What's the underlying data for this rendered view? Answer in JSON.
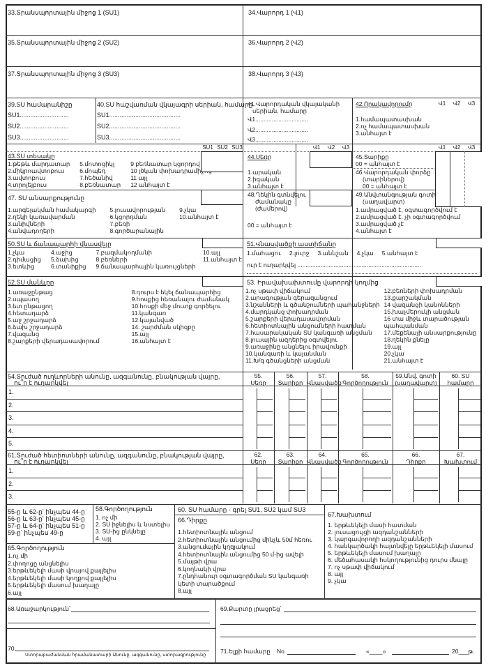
{
  "s33": "33.Տրանսպորտային միջոց 1 (SU1)",
  "s34": "34.Վարորդ 1 (Վ1)",
  "s35": "35.Տրանսպորտային միջոց 2 (SU2)",
  "s36": "36.Վարորդ 2 (Վ2)",
  "s37": "37.Տրանսպորտային միջոց 3 (SU3)",
  "s38": "38.Վարորդ 3 (Վ3)",
  "s39": {
    "title": "39.SU համարանիշը",
    "lines": [
      "SU1............................",
      "SU2............................",
      "SU3............................"
    ]
  },
  "s40": {
    "title": "40.SU հաշվառման վկայագրի սերիան, համարը",
    "lines": [
      "SU1.........................................",
      "SU2.........................................",
      "SU3........................................."
    ]
  },
  "s41": {
    "title": "41.Վարորդական վկայականի",
    "title2": "սերիան, համարը",
    "lines": [
      "Վ1................................",
      "Վ2................................",
      "Վ3................................"
    ]
  },
  "s42": {
    "title": "42.Որակավորումը",
    "items": [
      "1.համապատասխան",
      "2.ոչ համապատասխան",
      "3.անհայտ է"
    ]
  },
  "su_cols": [
    "SU1",
    "SU2",
    "SU3"
  ],
  "v_cols": [
    "Վ1",
    "Վ2",
    "Վ3"
  ],
  "s43": {
    "title": "43.SU տեսակը",
    "items": [
      "1.թեթև մարդատար",
      "2.միկրոավտոբուս",
      "3.ավտոբուս",
      "4.տրոլեյբուս",
      "5.մոտոցիկլ",
      "6.մոպեդ",
      "7.հեծանիվ",
      "8.բեռնատար",
      "9 բեռնատար կցորդով",
      "10 լծկան փոխադրամիջոց",
      "11 այլ",
      "12 անհայտ է"
    ]
  },
  "s44": {
    "title": "44.Սեռը",
    "items": [
      "1.արական",
      "2.իգական",
      "3.անհայտ է"
    ]
  },
  "s45": {
    "title": "45.Տարիքը",
    "note": "00 = անհայտ է"
  },
  "s46": {
    "title": "46.Վարորդական փորձը",
    "title2": "(տարիներով)",
    "note": "00 = անհայտ է"
  },
  "s47": {
    "title": "47. SU անսարքությունը",
    "items": [
      "1.արգելակման համակարգի",
      "2.ղեկի կառավարման",
      "3.անիվների",
      "4.անվադողերի",
      "5.լուսավորության",
      "6.կցորդման",
      "7.բեռի",
      "8.գործարանային",
      "9.չկա",
      "10.անհայտ է"
    ]
  },
  "s48": {
    "title": "48.Ղեկին գտնվելու",
    "title2": "ժամանակը",
    "title3": "(ժամերով)",
    "note": "00 = անհայտ է"
  },
  "s49": {
    "title": "49.Անվտանգության գոտի",
    "title2": "(սաղավարտ)",
    "items": [
      "1.ամրացված է, օգտագործվում է",
      "2.ամրացված է, չի օգտագործվում",
      "3.ամրացված չէ",
      "4.անհայտ է"
    ]
  },
  "s50": {
    "title": "50.SU և ճանապարհի վնասվելը",
    "items": [
      "1.չկա",
      "2.դիմացից",
      "3.ետևից",
      "4.աջից",
      "5.ձախից",
      "6.տանիքից",
      "7.բազմակողմանի",
      "8.բեռների",
      "9.ճանապարհային կառույցների"
    ],
    "items_right": [
      "10.այլ",
      "11.անհայտ է"
    ]
  },
  "s51": {
    "title": "51.Վնասվածքի աստիճանը",
    "items": [
      "1.մահացու",
      "2.լուրջ",
      "3.աննշան",
      "4.չկա",
      "5.անհայտ է"
    ],
    "sent": "ուր է ուղարկվել ..........................................................................."
  },
  "s52": {
    "title": "52.SU մանևրը",
    "items": [
      "1.առաջընթաց",
      "2.սպասող",
      "3.ետ ընթացող",
      "4.հետադարձ",
      "5.աջ շրջադարձ",
      "6.ձախ շրջադարձ",
      "7.վազանց",
      "8.շարքերի վերադասավորում",
      "8.դուրս է եկել ճանապարհից",
      "9.հոսքից հեռանալու ժամանակ",
      "10.հոսքի մեջ մուտք գործելու",
      "11.կանգառ",
      "12.կայանված",
      "14. շարժման սկիզբը",
      "15.այլ",
      "16.անհայտ է"
    ]
  },
  "s53": {
    "title": "53. Իրավախախտումը վարորդի կողմից",
    "items": [
      "1.ոչ սթափ վիճակում",
      "2.արագության գերազանցում",
      "3.նշանների և գծանշումների պահանջների",
      "4.մարդկանց փոխադրման",
      "5.շարքերի վերադասավորման",
      "6.հետիոտնային անցումների հատման",
      "7.հասարակական SU կանգառի անցման",
      "8.լուսային ազդերից օգտվելու",
      "9.առաջինը անցնելու իրավունքի",
      "10.կանգառի և կայանման",
      "11.Խ/գ գծանցների անցման",
      "12.բեռների փոխադրման",
      "13.քարշակման",
      "14 վազանցի կանոնների",
      "15.խաչմերուկի անցման",
      "16 տա միջև տարածության",
      "   պահպանման",
      "17.մեքենայի անսարքությունը",
      "18.ղեկին քնելը",
      "19.այլ",
      "20.չկա",
      "21.անհայտ է"
    ]
  },
  "t54": {
    "title": "54.Տուժած ուղևորների անունը, ազգանունը, բնակության վայրը,",
    "title2": "ու՞ր է ուղարկվել",
    "cols": [
      [
        "55.",
        "Սեռը"
      ],
      [
        "56.",
        "Տարիքը"
      ],
      [
        "57.",
        "Վնասվածք"
      ],
      [
        "58.",
        "Գործողություն"
      ],
      [
        "59.Անվ. գոտի",
        "(սաղավարտ)"
      ],
      [
        "60. SU",
        "համարը"
      ]
    ],
    "rows": [
      "1.",
      "2.",
      "3.",
      "4.",
      "5."
    ]
  },
  "t61": {
    "title": "61.Տուժած հետիոտների անունը, ազգանունը, բնակության վայրը,",
    "title2": "ու՞ր է ուղարկվել",
    "cols": [
      [
        "62.",
        "Սեռը"
      ],
      [
        "63.",
        "Տարիքը"
      ],
      [
        "64.",
        "Վնասվածք"
      ],
      [
        "65.",
        "Գործողություն"
      ],
      [
        "66.",
        "Դիրքը"
      ],
      [
        "67.",
        "Խախտում"
      ]
    ],
    "rows": [
      "1.",
      "2.",
      "3."
    ]
  },
  "legend": [
    "55-ը և 62-ը՝ ինչպես 44-ը",
    "56-ը և 63-ը՝ ինչպես 45-ը",
    "57-ը և 64-ը՝ ինչպես 51-ը",
    "59-ը՝ ինչպես 49-ը"
  ],
  "s58": {
    "title": "58.Գործողություն",
    "items": [
      "1. ոչ մի",
      "2. SU իջնելիս և նստելիս",
      "3. SU-ից ընկնելը",
      "4. այլ"
    ]
  },
  "s60": "60. SU համարը - գրել SU1, SU2 կամ SU3",
  "s66": {
    "title": "66.Դիրքը",
    "items": [
      "1.հետիոտնային անցում",
      "2.հետիոտնային անցումից մինչև 50մ հեռու",
      "3.անցումային կղզյակում",
      "4.հետիոտնային անցումից 50 մ-ից ավելի",
      "5.մայթի վրա",
      "6.կողնակի վրա",
      "7.ընդհանուր օգտագործման SU կանգառի",
      "   կետի տարածքում",
      "8.այլ"
    ]
  },
  "s65": {
    "title": "65.Գործողություն",
    "items": [
      "1.ոչ մի",
      "2.փողոցը անցնելիս",
      "3.երթևեկելի մասի վրայով քայլելիս",
      "4.երթևեկելի մասի կողքով քայլելիս",
      "5.երթևեկելի մասում խաղալը",
      "6.այլ"
    ]
  },
  "s67": {
    "title": "67.Խախտում",
    "items": [
      "1. երթևեկելի մասի հատման",
      "2. լուսացույցի ազդանշանների",
      "3. կարգավորողի ազդանշանների",
      "4. հանկարծակի հայտնվելը երթևեկելի մասում",
      "5. երթևեկելի մասում խաղալը",
      "6. մեծահասակի հսկողությունից դուրս մնալը",
      "7. ոչ սթափ վիճակում",
      "8. այլ",
      "9. չկա"
    ]
  },
  "s68": "68.Առաջարկություն՝",
  "s69": "69.Քարտը լրացրեց՝",
  "s70": {
    "label": "70.",
    "caption": "Ստորաբաժանման հրամանատարի Անունը, ազգանունը, ստորագրությունը"
  },
  "s71": {
    "label": "71.Ելքի համարը",
    "no": "No",
    "quote": "«____»",
    "year": "20___թ."
  }
}
